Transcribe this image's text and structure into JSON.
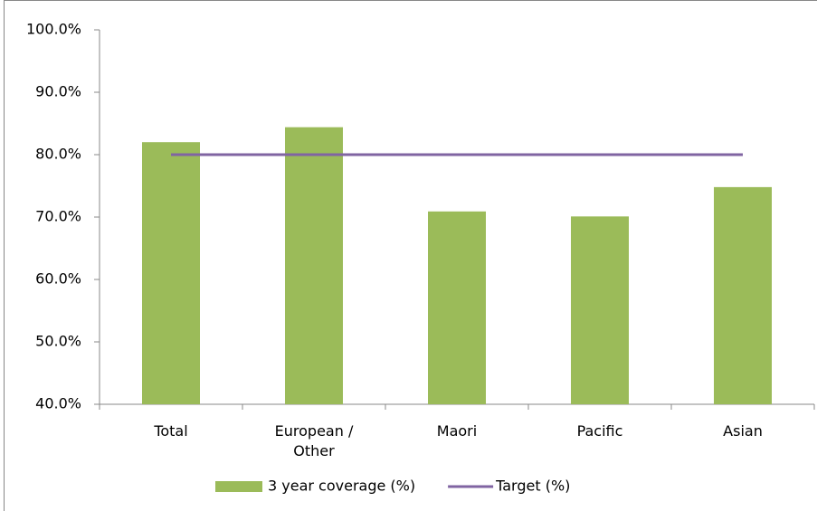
{
  "chart_data": {
    "type": "bar",
    "categories": [
      "Total",
      "European / Other",
      "Maori",
      "Pacific",
      "Asian"
    ],
    "series": [
      {
        "name": "3 year coverage (%)",
        "type": "bar",
        "color": "#9bbb59",
        "values": [
          82.0,
          84.4,
          70.9,
          70.1,
          74.8
        ]
      },
      {
        "name": "Target (%)",
        "type": "line",
        "color": "#8064a2",
        "values": [
          80,
          80,
          80,
          80,
          80
        ]
      }
    ],
    "ylim": [
      40,
      100
    ],
    "yticks": [
      {
        "value": 40,
        "label": "40.0%"
      },
      {
        "value": 50,
        "label": "50.0%"
      },
      {
        "value": 60,
        "label": "60.0%"
      },
      {
        "value": 70,
        "label": "70.0%"
      },
      {
        "value": 80,
        "label": "80.0%"
      },
      {
        "value": 90,
        "label": "90.0%"
      },
      {
        "value": 100,
        "label": "100.0%"
      }
    ],
    "grid": false,
    "legend": "bottom"
  }
}
